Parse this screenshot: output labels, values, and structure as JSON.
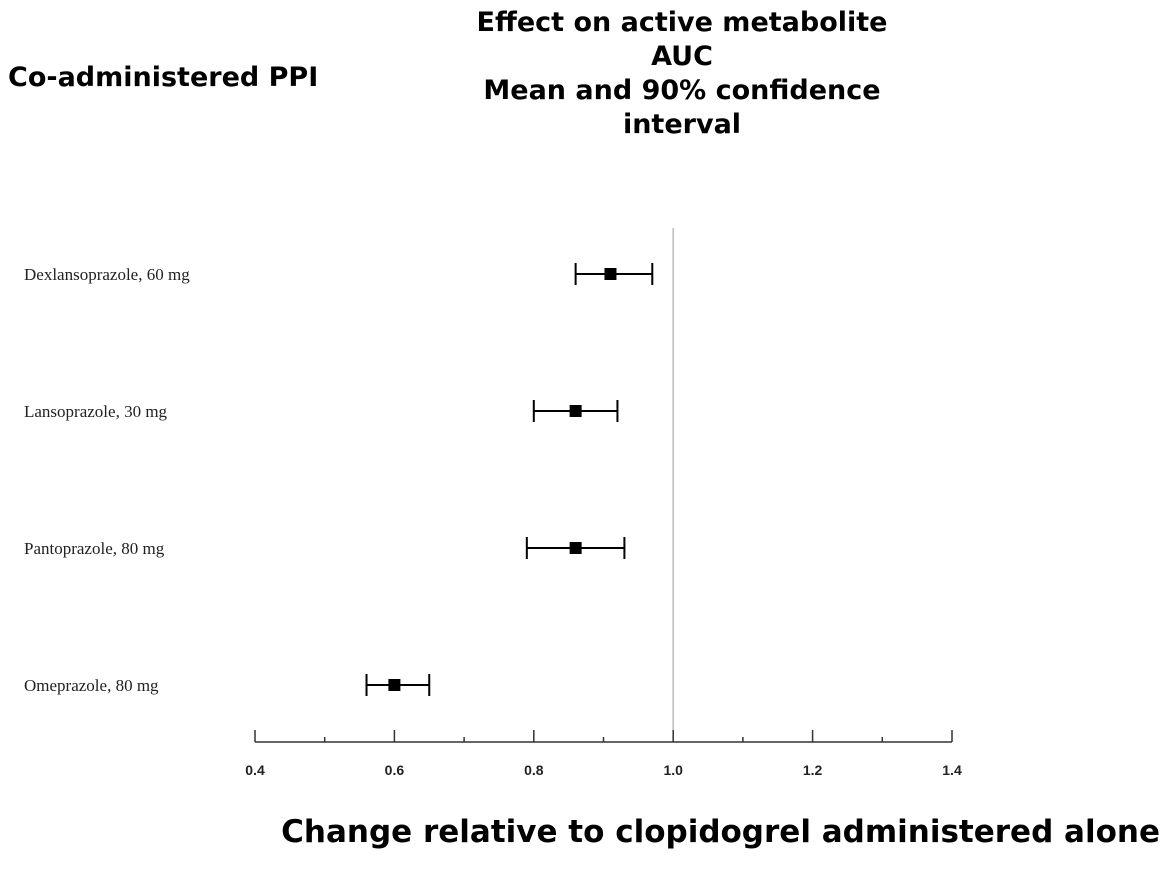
{
  "headers": {
    "column": "Co-administered PPI",
    "effect_lines": [
      "Effect on active metabolite",
      "AUC",
      "Mean and 90% confidence",
      "interval"
    ],
    "x_title": "Change relative to clopidogrel administered alone"
  },
  "chart_data": {
    "type": "forest",
    "x_range": [
      0.4,
      1.4
    ],
    "x_ticks": [
      "0.4",
      "0.6",
      "0.8",
      "1.0",
      "1.2",
      "1.4"
    ],
    "reference_line": 1.0,
    "rows": [
      {
        "label": "Dexlansoprazole, 60 mg",
        "mean": 0.91,
        "lower": 0.86,
        "upper": 0.97
      },
      {
        "label": "Lansoprazole, 30 mg",
        "mean": 0.86,
        "lower": 0.8,
        "upper": 0.92
      },
      {
        "label": "Pantoprazole, 80 mg",
        "mean": 0.86,
        "lower": 0.79,
        "upper": 0.93
      },
      {
        "label": "Omeprazole, 80 mg",
        "mean": 0.6,
        "lower": 0.56,
        "upper": 0.65
      }
    ],
    "colors": {
      "marker": "#000000",
      "reference_line": "#bbbbbb",
      "axis": "#333333"
    }
  }
}
